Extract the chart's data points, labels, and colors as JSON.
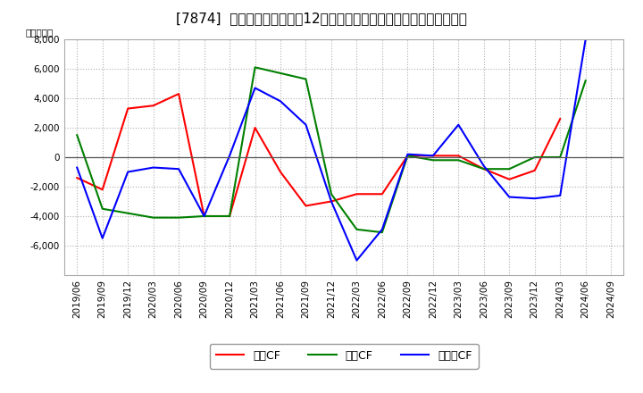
{
  "title": "[7874]  キャッシュフローの12か月移動合計の対前年同期増減額の推移",
  "ylabel": "（百万円）",
  "x_labels": [
    "2019/06",
    "2019/09",
    "2019/12",
    "2020/03",
    "2020/06",
    "2020/09",
    "2020/12",
    "2021/03",
    "2021/06",
    "2021/09",
    "2021/12",
    "2022/03",
    "2022/06",
    "2022/09",
    "2022/12",
    "2023/03",
    "2023/06",
    "2023/09",
    "2023/12",
    "2024/03",
    "2024/06",
    "2024/09"
  ],
  "operating_cf": [
    -1400,
    -2200,
    3300,
    3500,
    4300,
    -4000,
    -4000,
    2000,
    -1000,
    -3300,
    -3000,
    -2500,
    -2500,
    100,
    100,
    100,
    -800,
    -1500,
    -900,
    2600,
    null,
    null
  ],
  "investing_cf": [
    1500,
    -3500,
    -3800,
    -4100,
    -4100,
    -4000,
    -4000,
    6100,
    5700,
    5300,
    -2500,
    -4900,
    -5100,
    100,
    -200,
    -200,
    -800,
    -800,
    0,
    0,
    5200,
    null
  ],
  "free_cf": [
    -700,
    -5500,
    -1000,
    -700,
    -800,
    -4000,
    100,
    4700,
    3800,
    2200,
    -3000,
    -7000,
    -4900,
    200,
    100,
    2200,
    -600,
    -2700,
    -2800,
    -2600,
    8000,
    null
  ],
  "ylim": [
    -8000,
    8000
  ],
  "yticks": [
    -6000,
    -4000,
    -2000,
    0,
    2000,
    4000,
    6000,
    8000
  ],
  "line_colors": {
    "operating": "#ff0000",
    "investing": "#008000",
    "free": "#0000ff"
  },
  "legend_labels": [
    "営業CF",
    "投資CF",
    "フリーCF"
  ],
  "background_color": "#ffffff",
  "plot_background_color": "#ffffff",
  "grid_color": "#b0b0b0",
  "title_fontsize": 11,
  "axis_fontsize": 7.5
}
